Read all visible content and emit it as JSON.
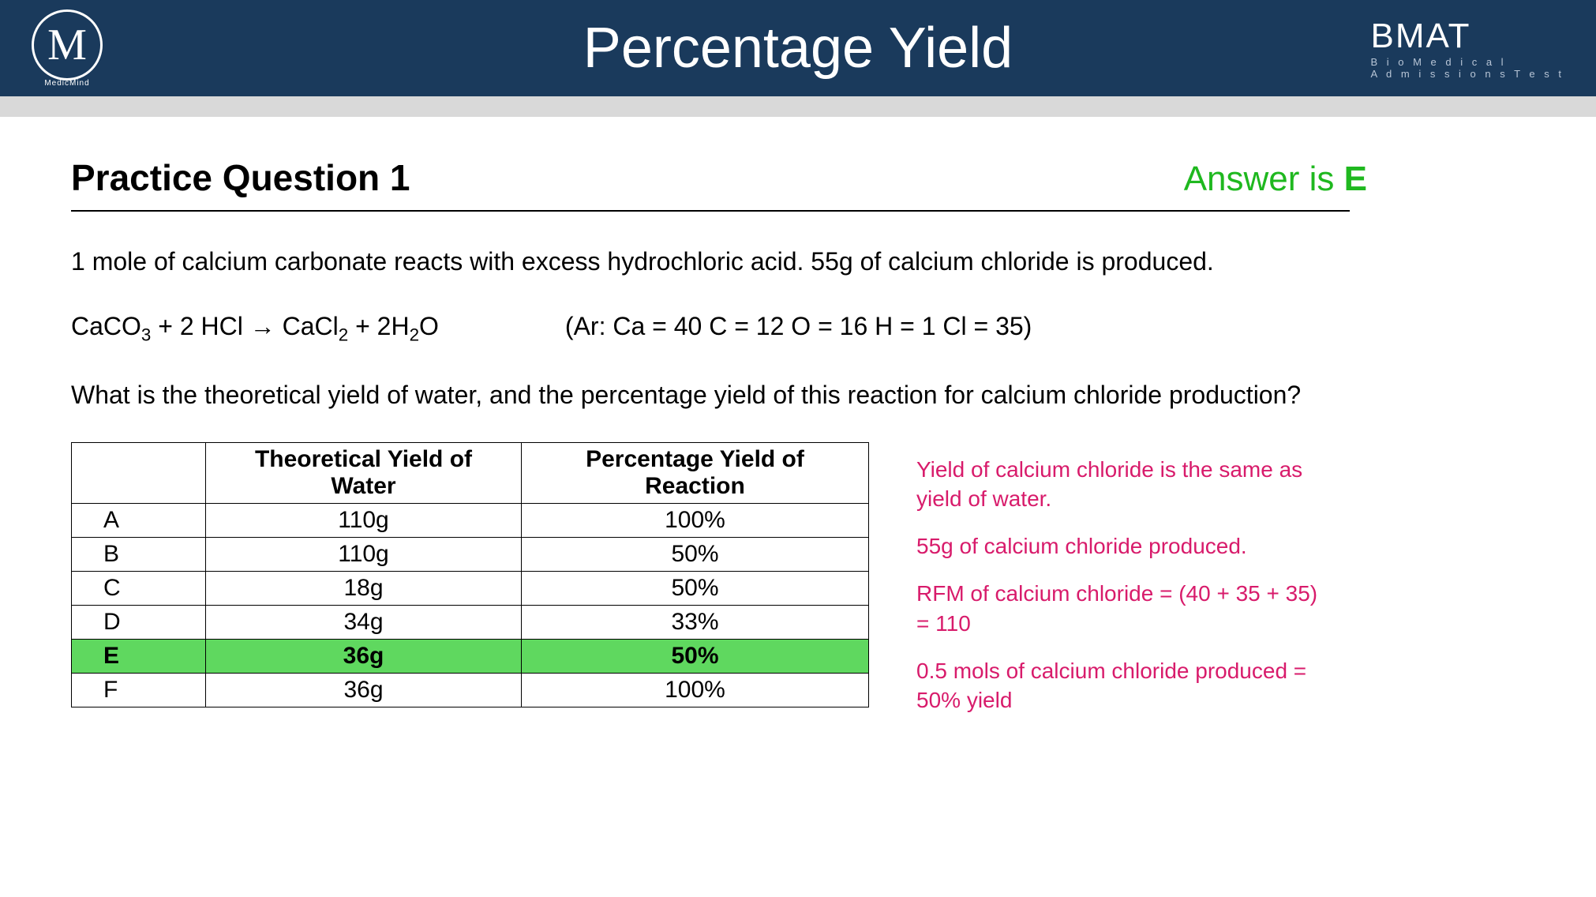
{
  "header": {
    "logo_letter": "M",
    "logo_sub": "MedicMind",
    "title": "Percentage Yield",
    "brand_main": "BMAT",
    "brand_sub1": "B i o M e d i c a l",
    "brand_sub2": "A d m i s s i o n s   T e s t"
  },
  "main": {
    "question_title": "Practice Question 1",
    "answer_prefix": "Answer is ",
    "answer_letter": "E",
    "line1": "1 mole of calcium carbonate reacts with excess hydrochloric acid. 55g of calcium chloride is produced.",
    "equation_lhs": "CaCO",
    "equation_sub1": "3",
    "equation_mid1": "  +  2 HCl   →   CaCl",
    "equation_sub2": "2",
    "equation_mid2": "  +  2H",
    "equation_sub3": "2",
    "equation_mid3": "O",
    "ar_text": "(Ar:    Ca = 40    C = 12    O = 16    H = 1   Cl = 35)",
    "line3": "What is the theoretical yield of water, and the percentage yield of this reaction for calcium chloride production?"
  },
  "table": {
    "headers": [
      "",
      "Theoretical Yield of Water",
      "Percentage Yield of Reaction"
    ],
    "rows": [
      {
        "label": "A",
        "yield": "110g",
        "pct": "100%",
        "highlight": false
      },
      {
        "label": "B",
        "yield": "110g",
        "pct": "50%",
        "highlight": false
      },
      {
        "label": "C",
        "yield": "18g",
        "pct": "50%",
        "highlight": false
      },
      {
        "label": "D",
        "yield": "34g",
        "pct": "33%",
        "highlight": false
      },
      {
        "label": "E",
        "yield": "36g",
        "pct": "50%",
        "highlight": true
      },
      {
        "label": "F",
        "yield": "36g",
        "pct": "100%",
        "highlight": false
      }
    ],
    "highlight_color": "#5fd85f"
  },
  "notes": {
    "n1": "Yield of calcium chloride is the same as yield of water.",
    "n2": "55g of calcium chloride produced.",
    "n3": "RFM of calcium chloride = (40 + 35 + 35) = 110",
    "n4": "0.5 mols of calcium chloride produced = 50% yield"
  },
  "colors": {
    "header_bg": "#1a3a5c",
    "answer_green": "#1fb81f",
    "notes_pink": "#d81b6b"
  }
}
